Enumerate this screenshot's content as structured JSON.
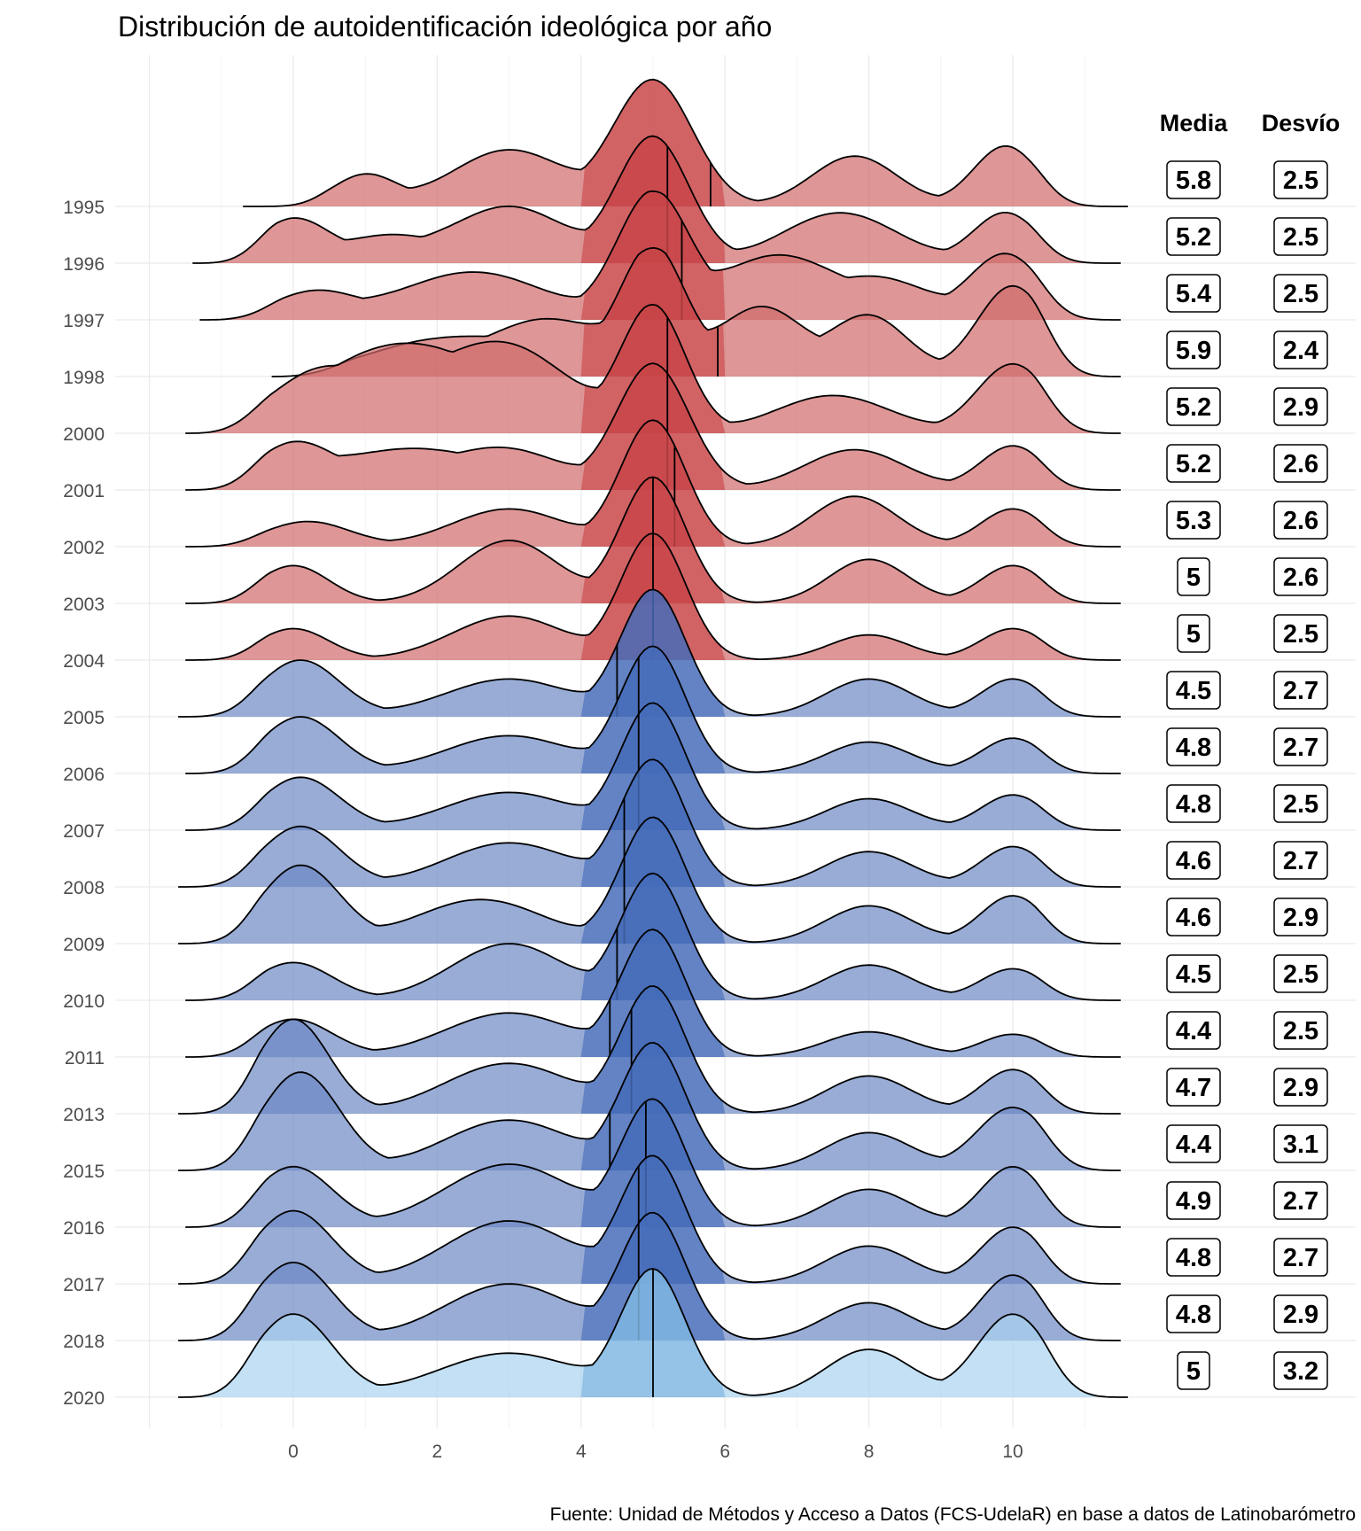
{
  "chart_data": {
    "type": "ridgeline",
    "title": "Distribución de autoidentificación ideológica por año",
    "caption": "Fuente: Unidad de Métodos y Acceso a Datos (FCS-UdelaR) en base a datos de Latinobarómetro",
    "xlabel": "",
    "ylabel": "",
    "xlim": [
      -2,
      11.5
    ],
    "x_ticks": [
      0,
      2,
      4,
      6,
      8,
      10
    ],
    "grid": true,
    "table_headers": {
      "mean": "Media",
      "sd": "Desvío"
    },
    "colors": {
      "red_fill": "#d06a6a",
      "red_dark": "#c0262a",
      "blue_fill": "#6c89c4",
      "blue_dark": "#2451b0",
      "last_fill": "#a9d3ef",
      "last_dark": "#5aa0d8",
      "outline": "#000000"
    },
    "series": [
      {
        "year": "1995",
        "group": "red",
        "mean": 5.8,
        "sd": 2.5,
        "mean_label": "5.8",
        "sd_label": "2.5",
        "x_min": -0.7,
        "x_max": 11.6,
        "peaks": [
          [
            1.0,
            0.25,
            0.45
          ],
          [
            3.0,
            0.45,
            0.8
          ],
          [
            5.0,
            1.0,
            0.55
          ],
          [
            7.8,
            0.4,
            0.6
          ],
          [
            9.9,
            0.48,
            0.45
          ]
        ]
      },
      {
        "year": "1996",
        "group": "red",
        "mean": 5.2,
        "sd": 2.5,
        "mean_label": "5.2",
        "sd_label": "2.5",
        "x_min": -1.4,
        "x_max": 11.5,
        "peaks": [
          [
            0.0,
            0.35,
            0.5
          ],
          [
            1.3,
            0.2,
            0.6
          ],
          [
            3.0,
            0.45,
            0.8
          ],
          [
            5.0,
            1.0,
            0.5
          ],
          [
            7.6,
            0.4,
            0.8
          ],
          [
            9.9,
            0.4,
            0.45
          ]
        ]
      },
      {
        "year": "1997",
        "group": "red",
        "mean": 5.4,
        "sd": 2.5,
        "mean_label": "5.4",
        "sd_label": "2.5",
        "x_min": -1.3,
        "x_max": 11.5,
        "peaks": [
          [
            0.3,
            0.22,
            0.6
          ],
          [
            2.5,
            0.38,
            1.0
          ],
          [
            5.0,
            1.0,
            0.5
          ],
          [
            6.7,
            0.5,
            0.8
          ],
          [
            8.2,
            0.3,
            0.7
          ],
          [
            9.9,
            0.52,
            0.5
          ]
        ]
      },
      {
        "year": "1998",
        "group": "red",
        "mean": 5.9,
        "sd": 2.4,
        "mean_label": "5.9",
        "sd_label": "2.4",
        "x_min": -0.3,
        "x_max": 11.5,
        "peaks": [
          [
            2.0,
            0.28,
            1.0
          ],
          [
            3.6,
            0.42,
            0.8
          ],
          [
            5.0,
            1.0,
            0.45
          ],
          [
            6.5,
            0.55,
            0.6
          ],
          [
            8.0,
            0.48,
            0.55
          ],
          [
            10.0,
            0.72,
            0.5
          ]
        ]
      },
      {
        "year": "2000",
        "group": "red",
        "mean": 5.2,
        "sd": 2.9,
        "mean_label": "5.2",
        "sd_label": "2.9",
        "x_min": -1.5,
        "x_max": 11.5,
        "peaks": [
          [
            0.3,
            0.4,
            0.7
          ],
          [
            1.5,
            0.6,
            0.9
          ],
          [
            3.0,
            0.65,
            0.9
          ],
          [
            5.0,
            1.0,
            0.45
          ],
          [
            7.5,
            0.3,
            0.8
          ],
          [
            10.0,
            0.55,
            0.5
          ]
        ]
      },
      {
        "year": "2001",
        "group": "red",
        "mean": 5.2,
        "sd": 2.6,
        "mean_label": "5.2",
        "sd_label": "2.6",
        "x_min": -1.5,
        "x_max": 11.5,
        "peaks": [
          [
            0.0,
            0.35,
            0.55
          ],
          [
            1.5,
            0.3,
            0.9
          ],
          [
            3.0,
            0.3,
            0.8
          ],
          [
            5.0,
            1.0,
            0.5
          ],
          [
            7.8,
            0.32,
            0.7
          ],
          [
            10.0,
            0.35,
            0.45
          ]
        ]
      },
      {
        "year": "2002",
        "group": "red",
        "mean": 5.3,
        "sd": 2.6,
        "mean_label": "5.3",
        "sd_label": "2.6",
        "x_min": -1.5,
        "x_max": 11.5,
        "peaks": [
          [
            0.2,
            0.2,
            0.6
          ],
          [
            3.0,
            0.3,
            0.8
          ],
          [
            5.0,
            1.0,
            0.45
          ],
          [
            7.8,
            0.4,
            0.6
          ],
          [
            10.0,
            0.3,
            0.45
          ]
        ]
      },
      {
        "year": "2003",
        "group": "red",
        "mean": 5.0,
        "sd": 2.6,
        "mean_label": "5",
        "sd_label": "2.6",
        "x_min": -1.5,
        "x_max": 11.5,
        "peaks": [
          [
            0.0,
            0.3,
            0.5
          ],
          [
            3.0,
            0.5,
            0.7
          ],
          [
            5.0,
            1.0,
            0.45
          ],
          [
            8.0,
            0.35,
            0.55
          ],
          [
            10.0,
            0.3,
            0.45
          ]
        ]
      },
      {
        "year": "2004",
        "group": "red",
        "mean": 5.0,
        "sd": 2.5,
        "mean_label": "5",
        "sd_label": "2.5",
        "x_min": -1.5,
        "x_max": 11.5,
        "peaks": [
          [
            0.0,
            0.25,
            0.5
          ],
          [
            3.0,
            0.35,
            0.8
          ],
          [
            5.0,
            1.0,
            0.45
          ],
          [
            8.0,
            0.2,
            0.55
          ],
          [
            10.0,
            0.25,
            0.45
          ]
        ]
      },
      {
        "year": "2005",
        "group": "blue",
        "mean": 4.5,
        "sd": 2.7,
        "mean_label": "4.5",
        "sd_label": "2.7",
        "x_min": -1.6,
        "x_max": 11.5,
        "peaks": [
          [
            0.1,
            0.45,
            0.55
          ],
          [
            3.0,
            0.3,
            0.9
          ],
          [
            5.0,
            1.0,
            0.45
          ],
          [
            8.0,
            0.3,
            0.6
          ],
          [
            10.0,
            0.3,
            0.45
          ]
        ]
      },
      {
        "year": "2006",
        "group": "blue",
        "mean": 4.8,
        "sd": 2.7,
        "mean_label": "4.8",
        "sd_label": "2.7",
        "x_min": -1.5,
        "x_max": 11.5,
        "peaks": [
          [
            0.1,
            0.45,
            0.55
          ],
          [
            3.0,
            0.3,
            0.9
          ],
          [
            5.0,
            1.0,
            0.45
          ],
          [
            8.0,
            0.25,
            0.6
          ],
          [
            10.0,
            0.28,
            0.45
          ]
        ]
      },
      {
        "year": "2007",
        "group": "blue",
        "mean": 4.8,
        "sd": 2.5,
        "mean_label": "4.8",
        "sd_label": "2.5",
        "x_min": -1.5,
        "x_max": 11.5,
        "peaks": [
          [
            0.1,
            0.42,
            0.55
          ],
          [
            3.0,
            0.3,
            0.9
          ],
          [
            5.0,
            1.0,
            0.45
          ],
          [
            8.0,
            0.25,
            0.6
          ],
          [
            10.0,
            0.28,
            0.45
          ]
        ]
      },
      {
        "year": "2008",
        "group": "blue",
        "mean": 4.6,
        "sd": 2.7,
        "mean_label": "4.6",
        "sd_label": "2.7",
        "x_min": -1.6,
        "x_max": 11.5,
        "peaks": [
          [
            0.1,
            0.48,
            0.55
          ],
          [
            3.0,
            0.35,
            0.9
          ],
          [
            5.0,
            1.0,
            0.45
          ],
          [
            8.0,
            0.28,
            0.6
          ],
          [
            10.0,
            0.32,
            0.45
          ]
        ]
      },
      {
        "year": "2009",
        "group": "blue",
        "mean": 4.6,
        "sd": 2.9,
        "mean_label": "4.6",
        "sd_label": "2.9",
        "x_min": -1.6,
        "x_max": 11.5,
        "peaks": [
          [
            0.1,
            0.62,
            0.55
          ],
          [
            2.6,
            0.35,
            0.9
          ],
          [
            5.0,
            1.0,
            0.45
          ],
          [
            8.0,
            0.3,
            0.6
          ],
          [
            10.0,
            0.38,
            0.45
          ]
        ]
      },
      {
        "year": "2010",
        "group": "blue",
        "mean": 4.5,
        "sd": 2.5,
        "mean_label": "4.5",
        "sd_label": "2.5",
        "x_min": -1.5,
        "x_max": 11.5,
        "peaks": [
          [
            0.0,
            0.3,
            0.55
          ],
          [
            3.0,
            0.45,
            0.8
          ],
          [
            5.0,
            1.0,
            0.45
          ],
          [
            8.0,
            0.28,
            0.6
          ],
          [
            10.0,
            0.25,
            0.45
          ]
        ]
      },
      {
        "year": "2011",
        "group": "blue",
        "mean": 4.4,
        "sd": 2.5,
        "mean_label": "4.4",
        "sd_label": "2.5",
        "x_min": -1.5,
        "x_max": 11.5,
        "peaks": [
          [
            0.0,
            0.3,
            0.55
          ],
          [
            3.0,
            0.35,
            0.9
          ],
          [
            5.0,
            1.0,
            0.45
          ],
          [
            8.0,
            0.2,
            0.6
          ],
          [
            10.0,
            0.18,
            0.45
          ]
        ]
      },
      {
        "year": "2013",
        "group": "blue",
        "mean": 4.7,
        "sd": 2.9,
        "mean_label": "4.7",
        "sd_label": "2.9",
        "x_min": -1.6,
        "x_max": 11.5,
        "peaks": [
          [
            0.0,
            0.75,
            0.5
          ],
          [
            3.0,
            0.4,
            0.9
          ],
          [
            5.0,
            1.0,
            0.45
          ],
          [
            8.0,
            0.3,
            0.6
          ],
          [
            10.0,
            0.35,
            0.45
          ]
        ]
      },
      {
        "year": "2015",
        "group": "blue",
        "mean": 4.4,
        "sd": 3.1,
        "mean_label": "4.4",
        "sd_label": "3.1",
        "x_min": -1.6,
        "x_max": 11.5,
        "peaks": [
          [
            0.1,
            0.78,
            0.55
          ],
          [
            3.0,
            0.4,
            0.9
          ],
          [
            5.0,
            1.0,
            0.45
          ],
          [
            8.0,
            0.3,
            0.6
          ],
          [
            10.0,
            0.5,
            0.5
          ]
        ]
      },
      {
        "year": "2016",
        "group": "blue",
        "mean": 4.9,
        "sd": 2.7,
        "mean_label": "4.9",
        "sd_label": "2.7",
        "x_min": -1.5,
        "x_max": 11.5,
        "peaks": [
          [
            0.0,
            0.48,
            0.55
          ],
          [
            3.0,
            0.5,
            0.9
          ],
          [
            5.0,
            1.0,
            0.45
          ],
          [
            8.0,
            0.3,
            0.6
          ],
          [
            10.0,
            0.48,
            0.45
          ]
        ]
      },
      {
        "year": "2017",
        "group": "blue",
        "mean": 4.8,
        "sd": 2.7,
        "mean_label": "4.8",
        "sd_label": "2.7",
        "x_min": -1.6,
        "x_max": 11.5,
        "peaks": [
          [
            0.0,
            0.58,
            0.55
          ],
          [
            3.0,
            0.5,
            0.9
          ],
          [
            5.0,
            1.0,
            0.45
          ],
          [
            8.0,
            0.3,
            0.6
          ],
          [
            10.0,
            0.45,
            0.45
          ]
        ]
      },
      {
        "year": "2018",
        "group": "blue",
        "mean": 4.8,
        "sd": 2.9,
        "mean_label": "4.8",
        "sd_label": "2.9",
        "x_min": -1.6,
        "x_max": 11.5,
        "peaks": [
          [
            0.0,
            0.62,
            0.55
          ],
          [
            3.0,
            0.45,
            0.9
          ],
          [
            5.0,
            1.0,
            0.45
          ],
          [
            8.0,
            0.3,
            0.6
          ],
          [
            10.0,
            0.52,
            0.45
          ]
        ]
      },
      {
        "year": "2020",
        "group": "last",
        "mean": 5.0,
        "sd": 3.2,
        "mean_label": "5",
        "sd_label": "3.2",
        "x_min": -1.6,
        "x_max": 11.6,
        "peaks": [
          [
            0.0,
            0.66,
            0.55
          ],
          [
            3.0,
            0.35,
            1.0
          ],
          [
            5.0,
            1.0,
            0.45
          ],
          [
            8.0,
            0.38,
            0.6
          ],
          [
            10.0,
            0.66,
            0.5
          ]
        ]
      }
    ]
  }
}
